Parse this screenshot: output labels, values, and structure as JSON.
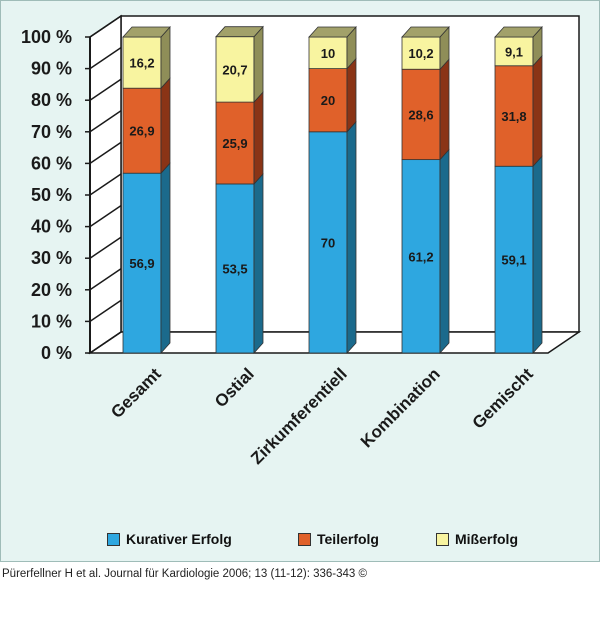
{
  "chart_data": {
    "type": "bar",
    "stacked": true,
    "three_d": true,
    "categories": [
      "Gesamt",
      "Ostial",
      "Zirkumferentiell",
      "Kombination",
      "Gemischt"
    ],
    "series": [
      {
        "name": "Kurativer Erfolg",
        "values": [
          56.9,
          53.5,
          70,
          61.2,
          59.1
        ],
        "labels": [
          "56,9",
          "53,5",
          "70",
          "61,2",
          "59,1"
        ],
        "color": "#2ea7e0",
        "side_color": "#1b6a8c",
        "top_color": "#62b8df"
      },
      {
        "name": "Teilerfolg",
        "values": [
          26.9,
          25.9,
          20,
          28.6,
          31.8
        ],
        "labels": [
          "26,9",
          "25,9",
          "20",
          "28,6",
          "31,8"
        ],
        "color": "#e0612a",
        "side_color": "#8a3416",
        "top_color": "#c46b43"
      },
      {
        "name": "Mißerfolg",
        "values": [
          16.2,
          20.7,
          10,
          10.2,
          9.1
        ],
        "labels": [
          "16,2",
          "20,7",
          "10",
          "10,2",
          "9,1"
        ],
        "color": "#f8f4a0",
        "side_color": "#8f8e58",
        "top_color": "#a2a16a"
      }
    ],
    "y_ticks": [
      "100 %",
      "90 %",
      "80 %",
      "70 %",
      "60 %",
      "50 %",
      "40 %",
      "30 %",
      "20 %",
      "10 %",
      "0 %"
    ],
    "ylim": [
      0,
      100
    ],
    "grid": false,
    "legend_position": "bottom"
  },
  "legend": {
    "item1": "Kurativer Erfolg",
    "item2": "Teilerfolg",
    "item3": "Mißerfolg"
  },
  "citation": "Pürerfellner H et al. Journal für Kardiologie 2006; 13 (11-12): 336-343 ©"
}
